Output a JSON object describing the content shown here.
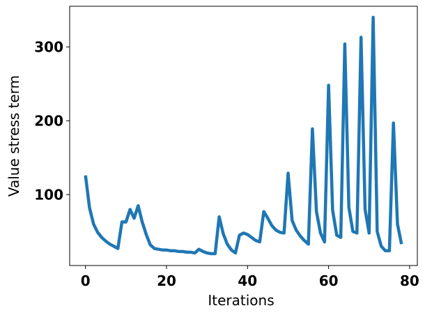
{
  "chart_data": {
    "type": "line",
    "title": "",
    "xlabel": "Iterations",
    "ylabel": "Value stress term",
    "xlim": [
      -3.9,
      81.9
    ],
    "ylim": [
      4,
      355
    ],
    "xticks": [
      0,
      20,
      40,
      60,
      80
    ],
    "yticks": [
      100,
      200,
      300
    ],
    "grid": false,
    "legend": "none",
    "series": [
      {
        "color": "#1f77b4",
        "x": [
          0,
          1,
          2,
          3,
          4,
          5,
          6,
          7,
          8,
          9,
          10,
          11,
          12,
          13,
          14,
          15,
          16,
          17,
          18,
          19,
          20,
          21,
          22,
          23,
          24,
          25,
          26,
          27,
          28,
          29,
          30,
          31,
          32,
          33,
          34,
          35,
          36,
          37,
          38,
          39,
          40,
          41,
          42,
          43,
          44,
          45,
          46,
          47,
          48,
          49,
          50,
          51,
          52,
          53,
          54,
          55,
          56,
          57,
          58,
          59,
          60,
          61,
          62,
          63,
          64,
          65,
          66,
          67,
          68,
          69,
          70,
          71,
          72,
          73,
          74,
          75,
          76,
          77,
          78
        ],
        "y": [
          126,
          82,
          60,
          49,
          42,
          37,
          33,
          30,
          27,
          63,
          63,
          80,
          68,
          85,
          63,
          46,
          32,
          27,
          26,
          25,
          25,
          24,
          24,
          23,
          23,
          22,
          22,
          21,
          26,
          23,
          21,
          20,
          20,
          70,
          47,
          33,
          25,
          21,
          45,
          48,
          46,
          42,
          38,
          36,
          77,
          68,
          58,
          52,
          49,
          48,
          129,
          65,
          52,
          44,
          38,
          33,
          189,
          77,
          48,
          36,
          248,
          79,
          45,
          42,
          304,
          83,
          50,
          48,
          313,
          80,
          48,
          340,
          50,
          30,
          24,
          24,
          197,
          60,
          33
        ]
      }
    ]
  }
}
